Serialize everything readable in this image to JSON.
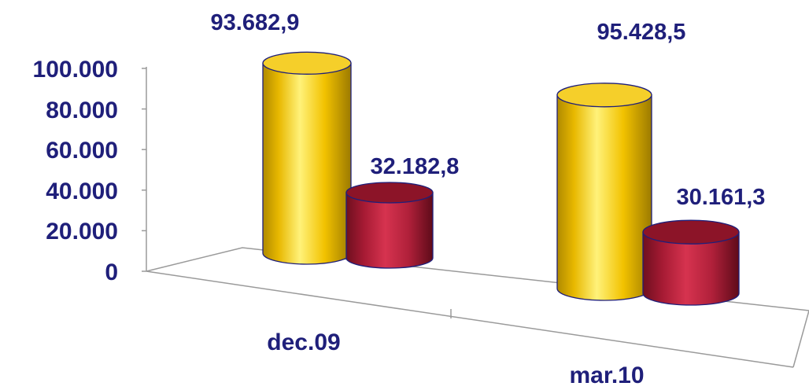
{
  "chart_data": {
    "type": "bar",
    "style": "3d-cylinder",
    "categories": [
      "dec.09",
      "mar.10"
    ],
    "series": [
      {
        "values": [
          93682.9,
          95428.5
        ],
        "labels": [
          "93.682,9",
          "95.428,5"
        ],
        "color": "#f2c200"
      },
      {
        "values": [
          32182.8,
          30161.3
        ],
        "labels": [
          "32.182,8",
          "30.161,3"
        ],
        "color": "#b0203a"
      }
    ],
    "y_ticks": [
      "0",
      "20.000",
      "40.000",
      "60.000",
      "80.000",
      "100.000"
    ],
    "ylim": [
      0,
      100000
    ],
    "grid": false,
    "legend": "none",
    "colors": {
      "text": "#1f1f7a",
      "axis": "#9a9a9a"
    }
  }
}
